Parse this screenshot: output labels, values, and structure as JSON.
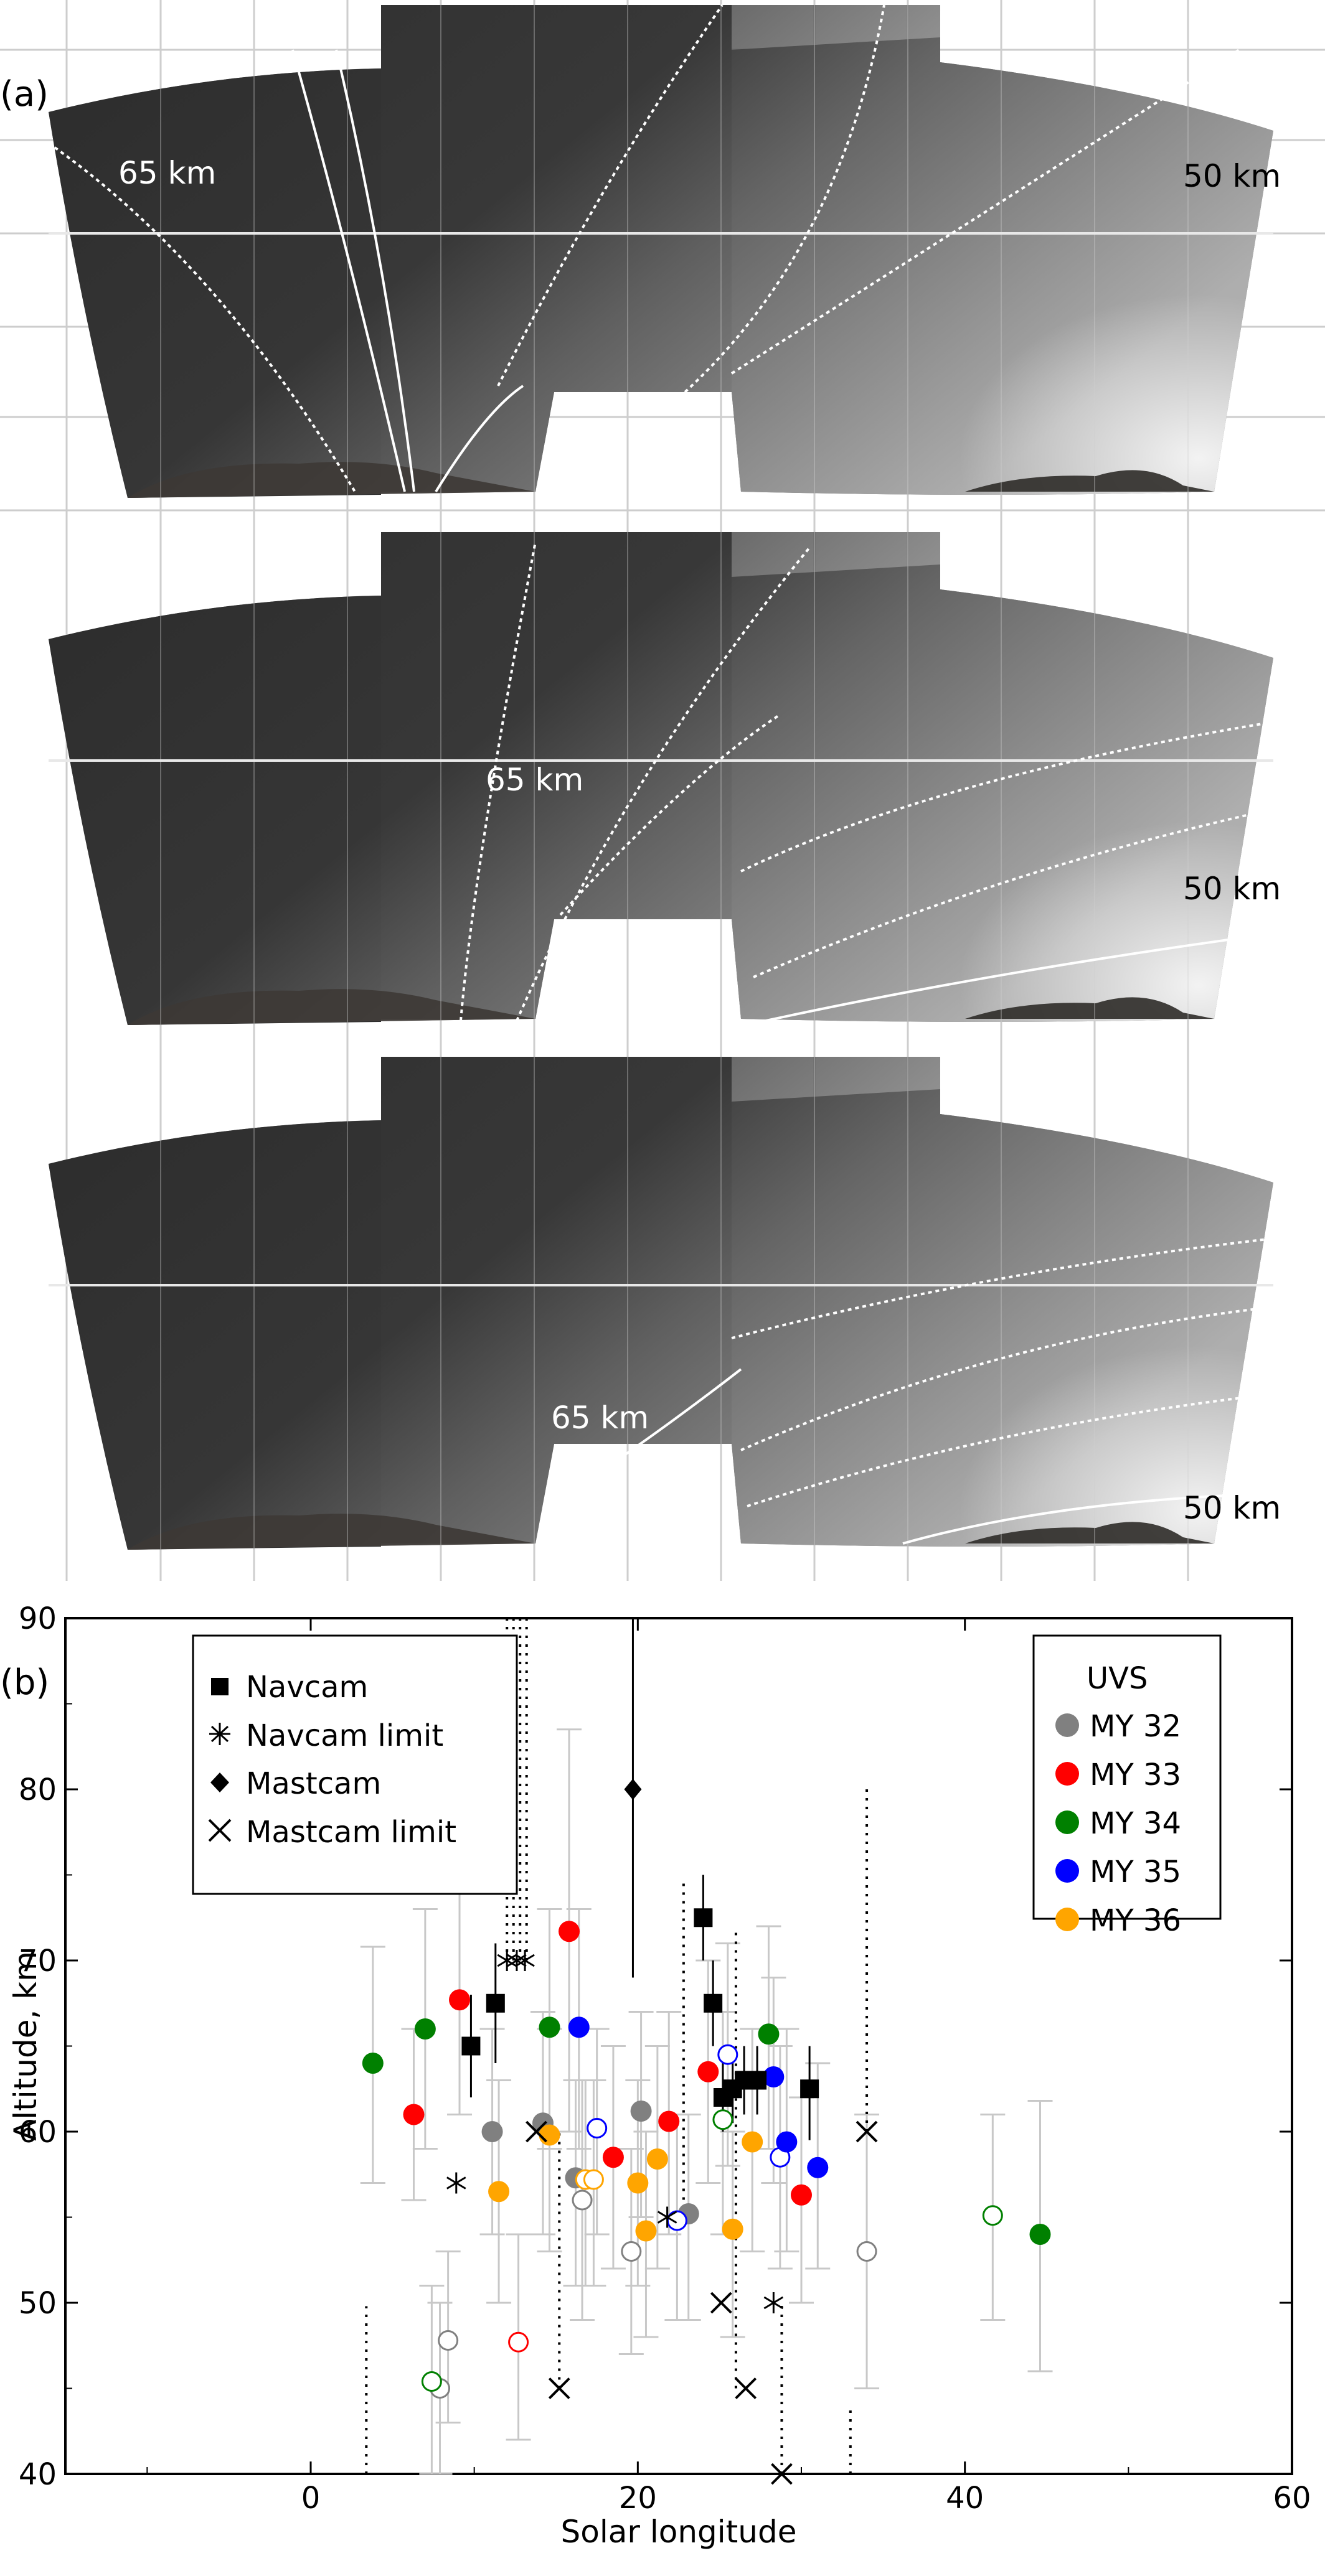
{
  "panel_a": {
    "label": "(a)",
    "frames": [
      {
        "name": "top",
        "label_65": "65 km",
        "label_50": "50 km"
      },
      {
        "name": "middle",
        "label_65": "65 km",
        "label_50": "50 km"
      },
      {
        "name": "bottom",
        "label_65": "65 km",
        "label_50": "50 km"
      }
    ]
  },
  "panel_b": {
    "label": "(b)"
  },
  "chart_data": {
    "type": "scatter",
    "xlabel": "Solar longitude",
    "ylabel": "Altitude, km",
    "xlim": [
      -15,
      60
    ],
    "ylim": [
      40,
      90
    ],
    "xticks": [
      0,
      20,
      40,
      60
    ],
    "yticks": [
      40,
      50,
      60,
      70,
      80,
      90
    ],
    "grid": false,
    "legend_instruments": {
      "placement": "top-left",
      "entries": [
        "Navcam",
        "Navcam limit",
        "Mastcam",
        "Mastcam limit"
      ]
    },
    "legend_uvs": {
      "placement": "top-right",
      "title": "UVS",
      "entries": [
        {
          "name": "MY 32",
          "color": "#808080"
        },
        {
          "name": "MY 33",
          "color": "#ff0000"
        },
        {
          "name": "MY 34",
          "color": "#008000"
        },
        {
          "name": "MY 35",
          "color": "#0000ff"
        },
        {
          "name": "MY 36",
          "color": "#ffa500"
        }
      ]
    },
    "navcam": [
      {
        "x": 9.8,
        "y": 65.0,
        "lo": 62.0,
        "hi": 68.0
      },
      {
        "x": 11.3,
        "y": 67.5,
        "lo": 64.0,
        "hi": 71.0
      },
      {
        "x": 24.0,
        "y": 72.5,
        "lo": 70.0,
        "hi": 75.0
      },
      {
        "x": 24.6,
        "y": 67.5,
        "lo": 65.0,
        "hi": 70.0
      },
      {
        "x": 25.2,
        "y": 62.0,
        "lo": 60.0,
        "hi": 64.0
      },
      {
        "x": 25.8,
        "y": 62.5,
        "lo": 60.5,
        "hi": 64.5
      },
      {
        "x": 26.5,
        "y": 63.0,
        "lo": 61.0,
        "hi": 65.0
      },
      {
        "x": 27.3,
        "y": 63.0,
        "lo": 61.0,
        "hi": 65.0
      },
      {
        "x": 30.5,
        "y": 62.5,
        "lo": 59.5,
        "hi": 65.0
      }
    ],
    "navcam_limit": [
      {
        "x": 8.9,
        "y": 57.0
      },
      {
        "x": 12.0,
        "y": 70.0
      },
      {
        "x": 12.6,
        "y": 70.0
      },
      {
        "x": 13.1,
        "y": 70.0
      },
      {
        "x": 21.8,
        "y": 55.0
      },
      {
        "x": 28.3,
        "y": 50.0
      }
    ],
    "navcam_limit_lines": [
      {
        "x": 12.0,
        "from": 70.0,
        "to": 90.0
      },
      {
        "x": 12.4,
        "from": 70.0,
        "to": 90.0
      },
      {
        "x": 12.8,
        "from": 70.0,
        "to": 90.0
      },
      {
        "x": 13.2,
        "from": 70.0,
        "to": 90.0
      }
    ],
    "mastcam": [
      {
        "x": 19.7,
        "y": 80.0,
        "lo": 69.0,
        "hi": 90.0
      }
    ],
    "mastcam_limit": [
      {
        "x": 13.8,
        "y": 60.0
      },
      {
        "x": 15.2,
        "y": 45.0
      },
      {
        "x": 25.1,
        "y": 50.0
      },
      {
        "x": 26.6,
        "y": 45.0
      },
      {
        "x": 28.8,
        "y": 40.0
      },
      {
        "x": 34.0,
        "y": 60.0
      }
    ],
    "mastcam_limit_lines": [
      {
        "x": 3.4,
        "from": 40.0,
        "to": 49.8
      },
      {
        "x": 15.2,
        "from": 45.0,
        "to": 60.0
      },
      {
        "x": 22.8,
        "from": 55.0,
        "to": 74.8
      },
      {
        "x": 26.0,
        "from": 45.0,
        "to": 71.7
      },
      {
        "x": 28.8,
        "from": 40.0,
        "to": 50.0
      },
      {
        "x": 33.0,
        "from": 40.0,
        "to": 44.0
      },
      {
        "x": 34.0,
        "from": 60.0,
        "to": 80.0
      }
    ],
    "uvs": [
      {
        "my": "MY 32",
        "x": 7.9,
        "y": 45.0,
        "lo": 40.0,
        "hi": 50.0,
        "open": true
      },
      {
        "my": "MY 32",
        "x": 8.4,
        "y": 47.8,
        "lo": 43.0,
        "hi": 53.0,
        "open": true
      },
      {
        "my": "MY 32",
        "x": 11.1,
        "y": 60.0,
        "lo": 54.0,
        "hi": 66.0,
        "open": false
      },
      {
        "my": "MY 32",
        "x": 14.2,
        "y": 60.5,
        "lo": 54.0,
        "hi": 67.0,
        "open": false
      },
      {
        "my": "MY 32",
        "x": 16.2,
        "y": 57.3,
        "lo": 51.0,
        "hi": 63.0,
        "open": false
      },
      {
        "my": "MY 32",
        "x": 16.6,
        "y": 56.0,
        "lo": 49.0,
        "hi": 63.0,
        "open": true
      },
      {
        "my": "MY 32",
        "x": 19.6,
        "y": 53.0,
        "lo": 47.0,
        "hi": 59.0,
        "open": true
      },
      {
        "my": "MY 32",
        "x": 20.2,
        "y": 61.2,
        "lo": 55.0,
        "hi": 67.0,
        "open": false
      },
      {
        "my": "MY 32",
        "x": 23.1,
        "y": 55.2,
        "lo": 49.0,
        "hi": 61.0,
        "open": false
      },
      {
        "my": "MY 32",
        "x": 34.0,
        "y": 53.0,
        "lo": 45.0,
        "hi": 61.0,
        "open": true
      },
      {
        "my": "MY 33",
        "x": 6.3,
        "y": 61.0,
        "lo": 56.0,
        "hi": 66.0,
        "open": false
      },
      {
        "my": "MY 33",
        "x": 9.1,
        "y": 67.7,
        "lo": 61.0,
        "hi": 74.0,
        "open": false
      },
      {
        "my": "MY 33",
        "x": 12.7,
        "y": 47.7,
        "lo": 42.0,
        "hi": 54.0,
        "open": true
      },
      {
        "my": "MY 33",
        "x": 15.8,
        "y": 71.7,
        "lo": 60.0,
        "hi": 83.5,
        "open": false
      },
      {
        "my": "MY 33",
        "x": 18.5,
        "y": 58.5,
        "lo": 52.0,
        "hi": 65.0,
        "open": false
      },
      {
        "my": "MY 33",
        "x": 21.9,
        "y": 60.6,
        "lo": 54.0,
        "hi": 67.0,
        "open": false
      },
      {
        "my": "MY 33",
        "x": 24.3,
        "y": 63.5,
        "lo": 57.0,
        "hi": 70.0,
        "open": false
      },
      {
        "my": "MY 33",
        "x": 30.0,
        "y": 56.3,
        "lo": 50.0,
        "hi": 62.0,
        "open": false
      },
      {
        "my": "MY 34",
        "x": 3.8,
        "y": 64.0,
        "lo": 57.0,
        "hi": 70.8,
        "open": false
      },
      {
        "my": "MY 34",
        "x": 7.0,
        "y": 66.0,
        "lo": 59.0,
        "hi": 73.0,
        "open": false
      },
      {
        "my": "MY 34",
        "x": 7.4,
        "y": 45.4,
        "lo": 40.0,
        "hi": 51.0,
        "open": true
      },
      {
        "my": "MY 34",
        "x": 14.6,
        "y": 66.1,
        "lo": 59.0,
        "hi": 73.0,
        "open": false
      },
      {
        "my": "MY 34",
        "x": 25.2,
        "y": 60.7,
        "lo": 54.0,
        "hi": 67.0,
        "open": true
      },
      {
        "my": "MY 34",
        "x": 28.0,
        "y": 65.7,
        "lo": 59.0,
        "hi": 72.0,
        "open": false
      },
      {
        "my": "MY 34",
        "x": 41.7,
        "y": 55.1,
        "lo": 49.0,
        "hi": 61.0,
        "open": true
      },
      {
        "my": "MY 34",
        "x": 44.6,
        "y": 54.0,
        "lo": 46.0,
        "hi": 61.8,
        "open": false
      },
      {
        "my": "MY 35",
        "x": 16.4,
        "y": 66.1,
        "lo": 59.0,
        "hi": 73.0,
        "open": false
      },
      {
        "my": "MY 35",
        "x": 17.5,
        "y": 60.2,
        "lo": 54.0,
        "hi": 66.0,
        "open": true
      },
      {
        "my": "MY 35",
        "x": 22.4,
        "y": 54.8,
        "lo": 49.0,
        "hi": 61.0,
        "open": true
      },
      {
        "my": "MY 35",
        "x": 25.5,
        "y": 64.5,
        "lo": 58.0,
        "hi": 71.0,
        "open": true
      },
      {
        "my": "MY 35",
        "x": 28.3,
        "y": 63.2,
        "lo": 57.0,
        "hi": 69.0,
        "open": false
      },
      {
        "my": "MY 35",
        "x": 28.7,
        "y": 58.5,
        "lo": 52.0,
        "hi": 65.0,
        "open": true
      },
      {
        "my": "MY 35",
        "x": 29.1,
        "y": 59.4,
        "lo": 53.0,
        "hi": 66.0,
        "open": false
      },
      {
        "my": "MY 35",
        "x": 31.0,
        "y": 57.9,
        "lo": 52.0,
        "hi": 64.0,
        "open": false
      },
      {
        "my": "MY 36",
        "x": 11.5,
        "y": 56.5,
        "lo": 50.0,
        "hi": 63.0,
        "open": false
      },
      {
        "my": "MY 36",
        "x": 14.6,
        "y": 59.8,
        "lo": 53.0,
        "hi": 66.0,
        "open": false
      },
      {
        "my": "MY 36",
        "x": 16.8,
        "y": 57.2,
        "lo": 51.0,
        "hi": 63.0,
        "open": true
      },
      {
        "my": "MY 36",
        "x": 17.3,
        "y": 57.2,
        "lo": 51.0,
        "hi": 63.0,
        "open": true
      },
      {
        "my": "MY 36",
        "x": 20.0,
        "y": 57.0,
        "lo": 51.0,
        "hi": 63.0,
        "open": false
      },
      {
        "my": "MY 36",
        "x": 20.5,
        "y": 54.2,
        "lo": 48.0,
        "hi": 60.0,
        "open": false
      },
      {
        "my": "MY 36",
        "x": 21.2,
        "y": 58.4,
        "lo": 52.0,
        "hi": 65.0,
        "open": false
      },
      {
        "my": "MY 36",
        "x": 25.8,
        "y": 54.3,
        "lo": 48.0,
        "hi": 60.0,
        "open": false
      },
      {
        "my": "MY 36",
        "x": 27.0,
        "y": 59.4,
        "lo": 53.0,
        "hi": 66.0,
        "open": false
      }
    ]
  }
}
